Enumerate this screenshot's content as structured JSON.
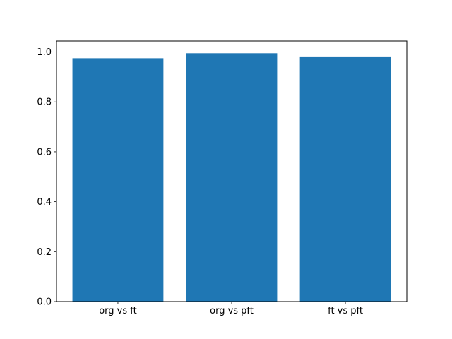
{
  "chart_data": {
    "type": "bar",
    "title": "",
    "xlabel": "",
    "ylabel": "",
    "categories": [
      "org vs ft",
      "org vs pft",
      "ft vs pft"
    ],
    "values": [
      0.975,
      0.995,
      0.982
    ],
    "yticks": [
      0.0,
      0.2,
      0.4,
      0.6,
      0.8,
      1.0
    ],
    "ytick_labels": [
      "0.0",
      "0.2",
      "0.4",
      "0.6",
      "0.8",
      "1.0"
    ],
    "ylim": [
      0,
      1.044
    ],
    "xlim": [
      -0.54,
      2.54
    ],
    "bar_width": 0.8,
    "bar_color": "#1f77b4",
    "frame_color": "#000000",
    "background_color": "#ffffff",
    "grid": false,
    "legend": null
  }
}
